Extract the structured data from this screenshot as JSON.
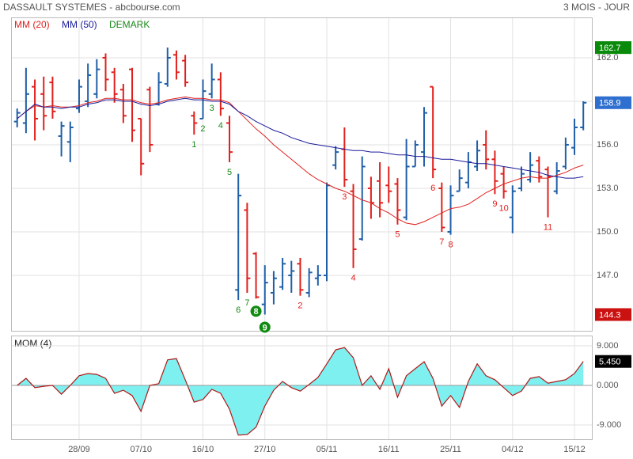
{
  "chart_data": [
    {
      "type": "ohlc",
      "title": "DASSAULT SYSTEMES - abcbourse.com",
      "subtitle": "3 MOIS - JOUR",
      "up_color": "#1f5fa8",
      "down_color": "#e0201c",
      "open": [
        157.6,
        157.5,
        160,
        159.5,
        160.3,
        156.6,
        156.2,
        158.5,
        159,
        159.5,
        162,
        161,
        159.8,
        161.2,
        157.8,
        159.8,
        158.8,
        160.2,
        162.2,
        161.8,
        158,
        157.8,
        159.5,
        160.5,
        157.5,
        146,
        151.5,
        148.5,
        145,
        145.8,
        146.2,
        147,
        147.8,
        145.8,
        146.8,
        147,
        154.6,
        155.7,
        152.8,
        149.5,
        153,
        153.5,
        153.2,
        153.3,
        151,
        154.5,
        155.5,
        160,
        153,
        150,
        152.8,
        153.4,
        154.5,
        156,
        155,
        154,
        151,
        153,
        153.6,
        154.9,
        154.3,
        152.8,
        154.5,
        155.8,
        157.2
      ],
      "high": [
        158.5,
        161.3,
        160.5,
        160.7,
        160.7,
        157.6,
        157.6,
        160.5,
        161.6,
        161.9,
        162.3,
        161.3,
        160.2,
        161.3,
        157.8,
        160,
        161,
        162.7,
        162.5,
        162.2,
        158.3,
        160.5,
        161.6,
        161,
        158,
        154,
        152,
        148.6,
        147.7,
        147.3,
        148.2,
        148,
        148.2,
        147.5,
        147.7,
        153.4,
        155.9,
        157.2,
        153.3,
        155.2,
        153.8,
        154.8,
        154.5,
        153.7,
        156.4,
        156.3,
        158.6,
        160,
        153.4,
        153.2,
        154.3,
        155.5,
        156.3,
        157,
        155.6,
        154.5,
        153.2,
        154.5,
        155.5,
        155.2,
        154.5,
        154.8,
        156.5,
        157.8,
        159
      ],
      "low": [
        157.2,
        156.8,
        156.3,
        157,
        157.8,
        155.2,
        154.8,
        158.2,
        158.6,
        159.2,
        159.7,
        158.9,
        157.5,
        156.2,
        153.9,
        155.5,
        158.7,
        160,
        160.5,
        160,
        156.7,
        157.8,
        159.2,
        158,
        154.8,
        145.3,
        145.8,
        145.4,
        144.3,
        145,
        146,
        145.8,
        145.6,
        145.5,
        146.3,
        146.6,
        154.3,
        153.1,
        147.5,
        149.4,
        150.9,
        151,
        152,
        150.5,
        150.8,
        154.5,
        154.5,
        153.7,
        150,
        149.8,
        152.8,
        153,
        154.2,
        154.3,
        152.6,
        152.3,
        149.9,
        152.8,
        153.4,
        153.4,
        151,
        152.6,
        154.3,
        155.3,
        157
      ],
      "close": [
        158.2,
        159.5,
        157.8,
        158,
        158.3,
        157.3,
        157.2,
        160,
        160.8,
        161.2,
        160.5,
        159.5,
        158,
        157,
        154.7,
        156,
        160.3,
        162,
        161,
        160.3,
        157.5,
        159.7,
        160.5,
        158.5,
        155.5,
        152.5,
        146.8,
        145.5,
        146.5,
        146.8,
        147.8,
        147.3,
        146,
        147.2,
        147,
        153.2,
        155.5,
        153.6,
        148.8,
        154.5,
        152,
        152,
        152.8,
        151.5,
        154.5,
        156,
        158.2,
        154.3,
        150.3,
        152.5,
        153.7,
        154.8,
        155.6,
        155,
        153.5,
        152.8,
        152.8,
        154,
        154.6,
        153.8,
        153.8,
        154.2,
        156,
        157.2,
        158.9
      ],
      "lines": [
        {
          "name": "MM (20)",
          "color": "#e0201c",
          "values": [
            157.8,
            158.3,
            158.7,
            158.6,
            158.7,
            158.6,
            158.6,
            158.7,
            158.9,
            159.0,
            159.2,
            159.2,
            159.1,
            159.1,
            158.9,
            158.8,
            158.9,
            159.1,
            159.2,
            159.3,
            159.2,
            159.2,
            159.1,
            159.1,
            158.9,
            158.3,
            157.7,
            157.1,
            156.6,
            156.0,
            155.5,
            155.0,
            154.5,
            154.0,
            153.6,
            153.3,
            153.0,
            152.8,
            152.5,
            152.2,
            152.0,
            151.6,
            151.3,
            150.9,
            150.6,
            150.5,
            150.7,
            151.0,
            151.3,
            151.6,
            151.7,
            151.9,
            152.3,
            152.7,
            153.0,
            153.3,
            153.5,
            153.7,
            153.8,
            153.7,
            153.7,
            153.9,
            154.1,
            154.4,
            154.6
          ]
        },
        {
          "name": "MM (50)",
          "color": "#1a1a9a",
          "values": [
            157.8,
            158.3,
            158.8,
            158.6,
            158.6,
            158.5,
            158.6,
            158.6,
            158.8,
            158.9,
            159.1,
            159.1,
            159.0,
            159.0,
            158.8,
            158.7,
            158.8,
            159.0,
            159.1,
            159.2,
            159.1,
            159.1,
            159.0,
            159.0,
            158.8,
            158.3,
            158.0,
            157.6,
            157.3,
            157.0,
            156.8,
            156.5,
            156.3,
            156.1,
            156.0,
            155.9,
            155.8,
            155.7,
            155.6,
            155.6,
            155.5,
            155.5,
            155.4,
            155.3,
            155.3,
            155.2,
            155.2,
            155.1,
            155.0,
            155.0,
            154.9,
            154.8,
            154.7,
            154.7,
            154.6,
            154.5,
            154.4,
            154.3,
            154.2,
            154.1,
            153.9,
            153.8,
            153.7,
            153.7,
            153.8
          ]
        }
      ],
      "legend_extra": {
        "name": "DEMARK",
        "color": "#1a8a1a"
      },
      "demark": [
        {
          "index": 20,
          "label": "1",
          "color": "#1a8a1a"
        },
        {
          "index": 21,
          "label": "2",
          "color": "#1a8a1a"
        },
        {
          "index": 22,
          "label": "3",
          "color": "#1a8a1a"
        },
        {
          "index": 23,
          "label": "4",
          "color": "#1a8a1a"
        },
        {
          "index": 24,
          "label": "5",
          "color": "#1a8a1a"
        },
        {
          "index": 25,
          "label": "6",
          "color": "#1a8a1a"
        },
        {
          "index": 26,
          "label": "7",
          "color": "#1a8a1a"
        },
        {
          "index": 27,
          "label": "8",
          "color": "#1a8a1a",
          "circled": true
        },
        {
          "index": 28,
          "label": "9",
          "color": "#1a8a1a",
          "circled": true
        },
        {
          "index": 32,
          "label": "2",
          "color": "#e0201c"
        },
        {
          "index": 37,
          "label": "3",
          "color": "#e0201c"
        },
        {
          "index": 38,
          "label": "4",
          "color": "#e0201c"
        },
        {
          "index": 43,
          "label": "5",
          "color": "#e0201c"
        },
        {
          "index": 47,
          "label": "6",
          "color": "#e0201c"
        },
        {
          "index": 48,
          "label": "7",
          "color": "#e0201c"
        },
        {
          "index": 49,
          "label": "8",
          "color": "#e0201c"
        },
        {
          "index": 54,
          "label": "9",
          "color": "#e0201c"
        },
        {
          "index": 55,
          "label": "10",
          "color": "#e0201c"
        },
        {
          "index": 60,
          "label": "11",
          "color": "#e0201c"
        }
      ],
      "price_labels": [
        {
          "value": 162.7,
          "label": "162.7",
          "color": "#0a8a0a"
        },
        {
          "value": 158.9,
          "label": "158.9",
          "color": "#2f6fd0"
        },
        {
          "value": 144.3,
          "label": "144.3",
          "color": "#cc1111"
        }
      ],
      "ylim": [
        143.18,
        164.78
      ],
      "yticks": [
        {
          "value": 147,
          "label": "147.0"
        },
        {
          "value": 150,
          "label": "150.0"
        },
        {
          "value": 153,
          "label": "153.0"
        },
        {
          "value": 156,
          "label": "156.0"
        },
        {
          "value": 159,
          "label": "159.0"
        },
        {
          "value": 162,
          "label": "162.0"
        }
      ],
      "grid": true
    },
    {
      "type": "area",
      "title": "MOM (4)",
      "color": "#b01818",
      "fill": "#7ff0f0",
      "categories": [
        null,
        null,
        null,
        null,
        null,
        null,
        null,
        "28/09",
        null,
        null,
        null,
        null,
        null,
        null,
        "07/10",
        null,
        null,
        null,
        null,
        null,
        null,
        "16/10",
        null,
        null,
        null,
        null,
        null,
        null,
        "27/10",
        null,
        null,
        null,
        null,
        null,
        null,
        "05/11",
        null,
        null,
        null,
        null,
        null,
        null,
        "16/11",
        null,
        null,
        null,
        null,
        null,
        null,
        "25/11",
        null,
        null,
        null,
        null,
        null,
        null,
        "04/12",
        null,
        null,
        null,
        null,
        null,
        null,
        "15/12",
        null
      ],
      "values": [
        0,
        1.6,
        -0.5,
        -0.2,
        0,
        -2,
        0,
        2.2,
        2.7,
        2.5,
        1.6,
        -1.8,
        -1.1,
        -2.3,
        -5.9,
        0,
        0.4,
        5.8,
        6.1,
        1.3,
        -3.8,
        -3.2,
        -0.9,
        -1.8,
        -5.4,
        -11.3,
        -11.2,
        -9.5,
        -4.7,
        -1.1,
        0.9,
        -0.5,
        -1.3,
        0.2,
        1.8,
        4.9,
        8.1,
        8.6,
        6.3,
        0,
        2.2,
        -0.9,
        3.8,
        -2.7,
        2.2,
        3.8,
        5.4,
        1.6,
        -4.7,
        -2.3,
        -5,
        0.9,
        4.9,
        2.2,
        1.3,
        -0.5,
        -2.3,
        -1.3,
        1.6,
        2,
        0.5,
        0.9,
        1.3,
        2.7,
        5.45
      ],
      "last_label": {
        "value": 5.45,
        "label": "5.450",
        "color": "#000000"
      },
      "ylim": [
        -12.24,
        11.34
      ],
      "yticks": [
        {
          "value": -9,
          "label": "-9.000"
        },
        {
          "value": 0,
          "label": "0.000"
        },
        {
          "value": 9,
          "label": "9.000"
        }
      ],
      "grid": true
    }
  ]
}
